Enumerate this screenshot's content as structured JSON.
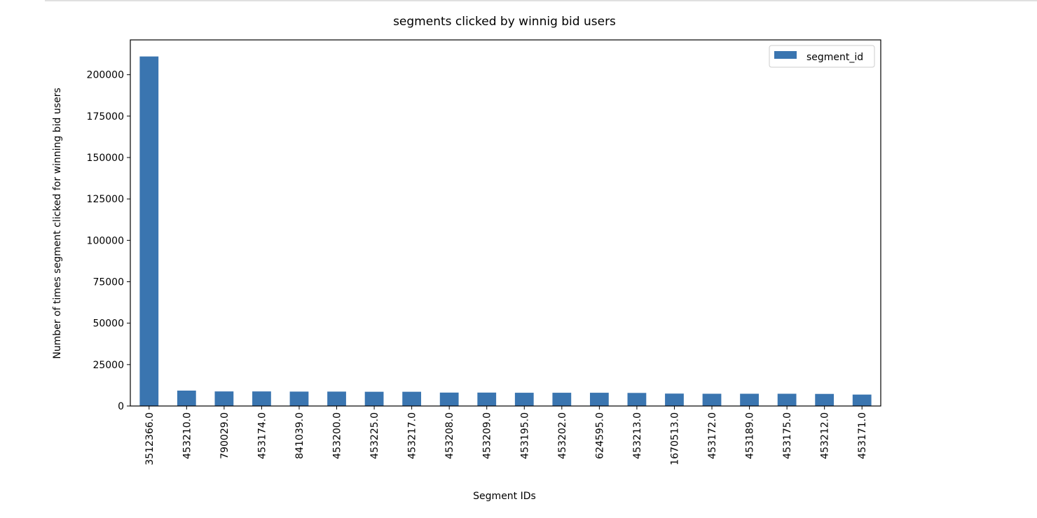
{
  "chart_data": {
    "type": "bar",
    "title": "segments clicked by winnig bid users",
    "xlabel": "Segment IDs",
    "ylabel": "Number of times segment clicked for winning bid users",
    "categories": [
      "3512366.0",
      "453210.0",
      "790029.0",
      "453174.0",
      "841039.0",
      "453200.0",
      "453225.0",
      "453217.0",
      "453208.0",
      "453209.0",
      "453195.0",
      "453202.0",
      "624595.0",
      "453213.0",
      "1670513.0",
      "453172.0",
      "453189.0",
      "453175.0",
      "453212.0",
      "453171.0"
    ],
    "series": [
      {
        "name": "segment_id",
        "color": "#3a75b0",
        "values": [
          211000,
          9300,
          8800,
          8800,
          8700,
          8700,
          8600,
          8600,
          8100,
          8100,
          8000,
          8000,
          8000,
          7900,
          7500,
          7400,
          7400,
          7400,
          7300,
          6900
        ]
      }
    ],
    "ylim": [
      0,
      221000
    ],
    "yticks": [
      0,
      25000,
      50000,
      75000,
      100000,
      125000,
      150000,
      175000,
      200000
    ],
    "legend": {
      "position": "top-right"
    },
    "grid": false
  }
}
